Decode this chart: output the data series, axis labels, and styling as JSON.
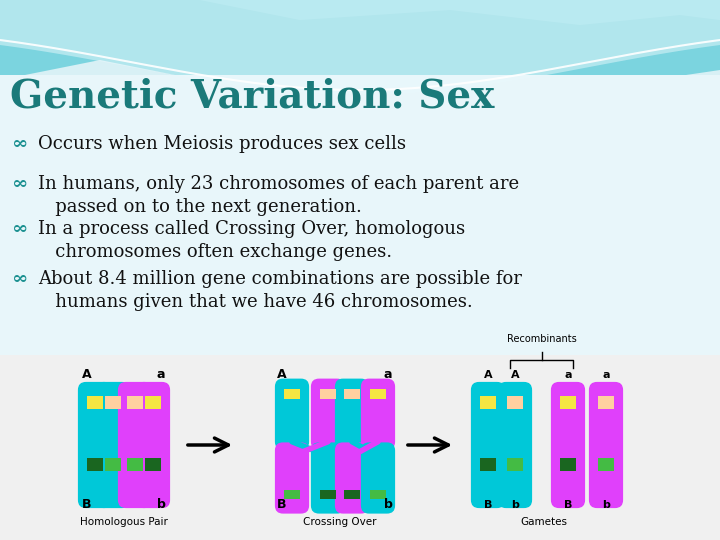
{
  "title": "Genetic Variation: Sex",
  "title_color": "#1a7a7a",
  "title_fontsize": 28,
  "bullets": [
    "Occurs when Meiosis produces sex cells",
    "In humans, only 23 chromosomes of each parent are\n   passed on to the next generation.",
    "In a process called Crossing Over, homologous\n   chromosomes often exchange genes.",
    "About 8.4 million gene combinations are possible for\n   humans given that we have 46 chromosomes."
  ],
  "bullet_fontsize": 13,
  "bullet_color": "#111111",
  "bullet_symbol_color": "#1a9090",
  "bg_color": "#ddf4f8",
  "diagram_labels": {
    "homologous": "Homologous Pair",
    "crossing": "Crossing Over",
    "gametes": "Gametes",
    "recombinants": "Recombinants"
  }
}
